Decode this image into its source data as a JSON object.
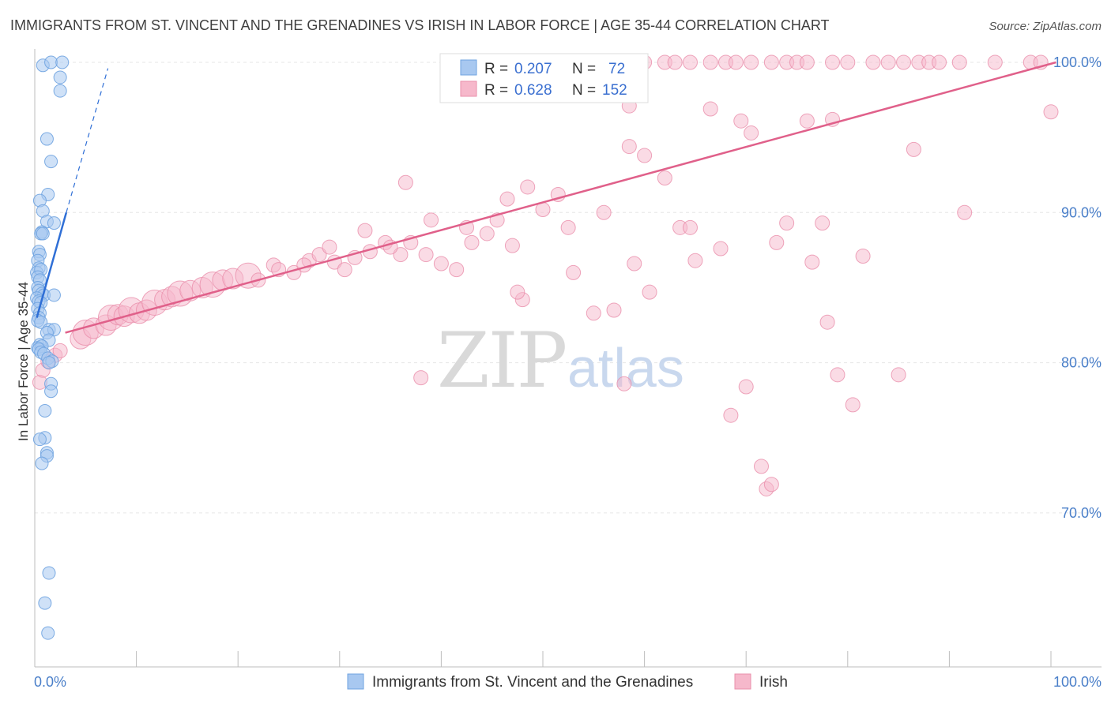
{
  "title": "IMMIGRANTS FROM ST. VINCENT AND THE GRENADINES VS IRISH IN LABOR FORCE | AGE 35-44 CORRELATION CHART",
  "source": "Source: ZipAtlas.com",
  "watermark": {
    "zip": "ZIP",
    "atlas": "atlas"
  },
  "colors": {
    "blue_fill": "#a8c8f0",
    "blue_stroke": "#6fa3e0",
    "blue_line": "#2f6fd6",
    "pink_fill": "#f6b8cb",
    "pink_stroke": "#ea8fab",
    "pink_line": "#e0608a",
    "grid": "#e6e6e6",
    "axis_text": "#4a7fc9"
  },
  "legend": {
    "rows": [
      {
        "r_label": "R =",
        "r_value": "0.207",
        "n_label": "N =",
        "n_value": "72"
      },
      {
        "r_label": "R =",
        "r_value": "0.628",
        "n_label": "N =",
        "n_value": "152"
      }
    ]
  },
  "chart_data": {
    "type": "scatter",
    "title": "IMMIGRANTS FROM ST. VINCENT AND THE GRENADINES VS IRISH IN LABOR FORCE | AGE 35-44 CORRELATION CHART",
    "xlabel": "",
    "ylabel": "In Labor Force | Age 35-44",
    "xlim": [
      0,
      105
    ],
    "ylim": [
      59.8,
      102.5
    ],
    "x_tick_labels": [
      {
        "value": 0,
        "label": "0.0%"
      },
      {
        "value": 100,
        "label": "100.0%"
      }
    ],
    "y_tick_labels": [
      {
        "value": 70,
        "label": "70.0%"
      },
      {
        "value": 80,
        "label": "80.0%"
      },
      {
        "value": 90,
        "label": "90.0%"
      },
      {
        "value": 100,
        "label": "100.0%"
      }
    ],
    "grid": "horizontal dashed",
    "legend_position": "top-center",
    "series": [
      {
        "name": "Immigrants from St. Vincent and the Grenadines",
        "color": "#a8c8f0",
        "r": 0.207,
        "n": 72,
        "trend": {
          "x0": 0.2,
          "y0": 83.0,
          "x1": 3.1,
          "y1": 90.0,
          "dash_to": [
            7.2,
            99.6
          ]
        },
        "points": [
          [
            0.8,
            99.8
          ],
          [
            1.6,
            100.0
          ],
          [
            2.7,
            100.0
          ],
          [
            2.5,
            99.0
          ],
          [
            2.5,
            98.1
          ],
          [
            1.2,
            94.9
          ],
          [
            1.6,
            93.4
          ],
          [
            1.3,
            91.2
          ],
          [
            0.5,
            90.8
          ],
          [
            0.8,
            90.1
          ],
          [
            1.2,
            89.4
          ],
          [
            1.9,
            89.3
          ],
          [
            0.7,
            88.7
          ],
          [
            0.6,
            88.6
          ],
          [
            0.8,
            88.6
          ],
          [
            0.4,
            87.4
          ],
          [
            0.5,
            87.2
          ],
          [
            0.3,
            86.8
          ],
          [
            0.4,
            86.3
          ],
          [
            0.2,
            86.0
          ],
          [
            0.6,
            86.2
          ],
          [
            0.3,
            85.7
          ],
          [
            0.5,
            85.5
          ],
          [
            0.3,
            85.0
          ],
          [
            0.4,
            84.8
          ],
          [
            0.7,
            84.6
          ],
          [
            0.9,
            84.5
          ],
          [
            1.9,
            84.5
          ],
          [
            0.2,
            84.3
          ],
          [
            0.4,
            84.1
          ],
          [
            0.6,
            84.0
          ],
          [
            0.3,
            83.6
          ],
          [
            0.5,
            83.3
          ],
          [
            0.4,
            83.0
          ],
          [
            0.3,
            82.8
          ],
          [
            0.6,
            82.7
          ],
          [
            1.4,
            82.2
          ],
          [
            1.9,
            82.2
          ],
          [
            1.2,
            82.0
          ],
          [
            1.4,
            81.5
          ],
          [
            0.5,
            81.2
          ],
          [
            0.3,
            81.0
          ],
          [
            0.7,
            81.1
          ],
          [
            0.4,
            80.9
          ],
          [
            0.6,
            80.7
          ],
          [
            0.9,
            80.6
          ],
          [
            1.3,
            80.3
          ],
          [
            1.7,
            80.1
          ],
          [
            1.4,
            80.0
          ],
          [
            1.6,
            78.6
          ],
          [
            1.6,
            78.1
          ],
          [
            1.0,
            76.8
          ],
          [
            1.0,
            75.0
          ],
          [
            0.5,
            74.9
          ],
          [
            1.2,
            74.0
          ],
          [
            1.2,
            73.8
          ],
          [
            0.7,
            73.3
          ],
          [
            1.4,
            66.0
          ],
          [
            1.0,
            64.0
          ],
          [
            1.3,
            62.0
          ]
        ]
      },
      {
        "name": "Irish",
        "color": "#f6b8cb",
        "r": 0.628,
        "n": 152,
        "trend": {
          "x0": 3.0,
          "y0": 82.0,
          "x1": 100.5,
          "y1": 100.0
        },
        "points": [
          [
            0.5,
            78.7
          ],
          [
            0.8,
            79.5
          ],
          [
            1.3,
            80.1
          ],
          [
            2.0,
            80.5
          ],
          [
            2.5,
            80.8
          ],
          [
            4.5,
            81.6
          ],
          [
            5.0,
            82.0
          ],
          [
            5.8,
            82.3
          ],
          [
            7.0,
            82.5
          ],
          [
            7.5,
            83.0
          ],
          [
            8.2,
            83.2
          ],
          [
            8.8,
            83.1
          ],
          [
            9.5,
            83.5
          ],
          [
            10.3,
            83.3
          ],
          [
            11.0,
            83.5
          ],
          [
            11.8,
            84.0
          ],
          [
            12.8,
            84.2
          ],
          [
            13.5,
            84.4
          ],
          [
            14.3,
            84.6
          ],
          [
            15.3,
            84.8
          ],
          [
            16.5,
            85.0
          ],
          [
            17.5,
            85.2
          ],
          [
            18.5,
            85.5
          ],
          [
            19.5,
            85.6
          ],
          [
            21.0,
            85.8
          ],
          [
            22.0,
            85.5
          ],
          [
            23.5,
            86.5
          ],
          [
            24.0,
            86.2
          ],
          [
            25.5,
            86.0
          ],
          [
            27.0,
            86.8
          ],
          [
            28.0,
            87.2
          ],
          [
            29.5,
            86.7
          ],
          [
            30.5,
            86.2
          ],
          [
            31.5,
            87.0
          ],
          [
            33.0,
            87.4
          ],
          [
            34.5,
            88.0
          ],
          [
            36.0,
            87.2
          ],
          [
            37.0,
            88.0
          ],
          [
            38.5,
            87.2
          ],
          [
            40.0,
            86.6
          ],
          [
            41.5,
            86.2
          ],
          [
            43.0,
            88.0
          ],
          [
            44.5,
            88.6
          ],
          [
            45.5,
            89.5
          ],
          [
            47.0,
            87.8
          ],
          [
            48.5,
            91.7
          ],
          [
            50.0,
            90.2
          ],
          [
            51.5,
            91.2
          ],
          [
            53.0,
            86.0
          ],
          [
            55.0,
            83.3
          ],
          [
            56.0,
            90.0
          ],
          [
            57.0,
            83.5
          ],
          [
            58.0,
            78.6
          ],
          [
            59.0,
            86.6
          ],
          [
            60.5,
            84.7
          ],
          [
            62.0,
            92.3
          ],
          [
            63.5,
            89.0
          ],
          [
            64.5,
            89.0
          ],
          [
            65.0,
            86.8
          ],
          [
            66.5,
            96.9
          ],
          [
            67.5,
            87.6
          ],
          [
            68.5,
            76.5
          ],
          [
            69.5,
            96.1
          ],
          [
            70.0,
            78.4
          ],
          [
            70.5,
            95.3
          ],
          [
            71.5,
            73.1
          ],
          [
            72.0,
            71.6
          ],
          [
            72.5,
            71.9
          ],
          [
            73.0,
            88.0
          ],
          [
            74.0,
            89.3
          ],
          [
            76.0,
            96.1
          ],
          [
            76.5,
            86.7
          ],
          [
            77.5,
            89.3
          ],
          [
            78.0,
            82.7
          ],
          [
            78.5,
            96.2
          ],
          [
            79.0,
            79.2
          ],
          [
            80.5,
            77.2
          ],
          [
            81.5,
            87.1
          ],
          [
            85.0,
            79.2
          ],
          [
            86.5,
            94.2
          ],
          [
            91.5,
            90.0
          ],
          [
            100.0,
            96.7
          ],
          [
            46.5,
            90.9
          ],
          [
            42.5,
            89.0
          ],
          [
            39.0,
            89.5
          ],
          [
            35.0,
            87.7
          ],
          [
            32.5,
            88.8
          ],
          [
            29.0,
            87.7
          ],
          [
            26.5,
            86.5
          ],
          [
            52.5,
            89.0
          ],
          [
            48.0,
            84.2
          ],
          [
            47.5,
            84.7
          ],
          [
            38.0,
            79.0
          ],
          [
            36.5,
            92.0
          ],
          [
            58.5,
            94.4
          ],
          [
            60.0,
            93.8
          ],
          [
            58.5,
            97.1
          ],
          [
            47.0,
            100.0
          ],
          [
            51.0,
            100.0
          ],
          [
            52.5,
            100.0
          ],
          [
            55.5,
            100.0
          ],
          [
            57.5,
            100.0
          ],
          [
            58.5,
            100.0
          ],
          [
            60.0,
            100.0
          ],
          [
            62.0,
            100.0
          ],
          [
            63.0,
            100.0
          ],
          [
            64.5,
            100.0
          ],
          [
            66.5,
            100.0
          ],
          [
            68.0,
            100.0
          ],
          [
            69.0,
            100.0
          ],
          [
            70.5,
            100.0
          ],
          [
            72.5,
            100.0
          ],
          [
            74.0,
            100.0
          ],
          [
            75.0,
            100.0
          ],
          [
            76.0,
            100.0
          ],
          [
            78.5,
            100.0
          ],
          [
            80.0,
            100.0
          ],
          [
            82.5,
            100.0
          ],
          [
            84.0,
            100.0
          ],
          [
            85.5,
            100.0
          ],
          [
            87.0,
            100.0
          ],
          [
            88.0,
            100.0
          ],
          [
            89.0,
            100.0
          ],
          [
            91.0,
            100.0
          ],
          [
            94.5,
            100.0
          ],
          [
            98.0,
            100.0
          ],
          [
            99.0,
            100.0
          ]
        ]
      }
    ]
  },
  "bottom_legend": {
    "items": [
      {
        "label": "Immigrants from St. Vincent and the Grenadines"
      },
      {
        "label": "Irish"
      }
    ]
  }
}
